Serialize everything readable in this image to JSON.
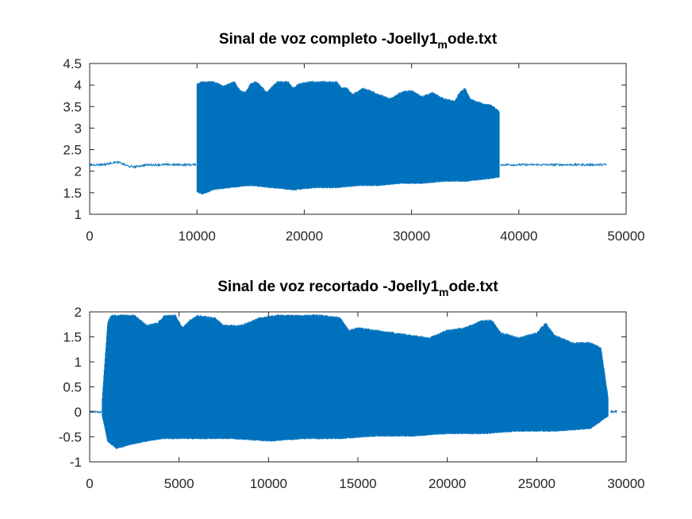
{
  "chart_data": [
    {
      "type": "line",
      "title": "Sinal de voz completo -Joelly1",
      "title_subscript": "m",
      "title_suffix": "ode.txt",
      "xlabel": "",
      "ylabel": "",
      "xlim": [
        0,
        50000
      ],
      "ylim": [
        1,
        4.5
      ],
      "xticks": [
        0,
        10000,
        20000,
        30000,
        40000,
        50000
      ],
      "yticks": [
        1,
        1.5,
        2,
        2.5,
        3,
        3.5,
        4,
        4.5
      ],
      "grid": false,
      "color": "#0072BD",
      "series": [
        {
          "x_range": [
            0,
            48200
          ],
          "baseline": 2.15,
          "silence_start": [
            0,
            9900
          ],
          "silence_end": [
            38300,
            48200
          ],
          "upper_envelope": [
            [
              10000,
              4.05
            ],
            [
              10500,
              4.1
            ],
            [
              11500,
              4.1
            ],
            [
              12500,
              4.0
            ],
            [
              13500,
              4.1
            ],
            [
              14000,
              3.9
            ],
            [
              14500,
              3.85
            ],
            [
              15000,
              4.05
            ],
            [
              15500,
              4.1
            ],
            [
              16000,
              4.0
            ],
            [
              16500,
              3.85
            ],
            [
              17500,
              4.1
            ],
            [
              18500,
              4.1
            ],
            [
              19000,
              3.95
            ],
            [
              19500,
              4.05
            ],
            [
              20500,
              4.1
            ],
            [
              22000,
              4.1
            ],
            [
              23000,
              4.1
            ],
            [
              23500,
              3.95
            ],
            [
              24000,
              3.95
            ],
            [
              24500,
              3.8
            ],
            [
              25500,
              3.95
            ],
            [
              26000,
              3.9
            ],
            [
              27000,
              3.8
            ],
            [
              28000,
              3.7
            ],
            [
              29000,
              3.85
            ],
            [
              30000,
              3.9
            ],
            [
              31000,
              3.75
            ],
            [
              32000,
              3.85
            ],
            [
              33000,
              3.7
            ],
            [
              34000,
              3.65
            ],
            [
              34500,
              3.85
            ],
            [
              35000,
              3.95
            ],
            [
              35500,
              3.7
            ],
            [
              36500,
              3.6
            ],
            [
              37500,
              3.55
            ],
            [
              38200,
              3.4
            ]
          ],
          "lower_envelope": [
            [
              10000,
              1.5
            ],
            [
              10500,
              1.45
            ],
            [
              11500,
              1.55
            ],
            [
              13000,
              1.6
            ],
            [
              15000,
              1.65
            ],
            [
              17000,
              1.6
            ],
            [
              19000,
              1.55
            ],
            [
              21000,
              1.6
            ],
            [
              23000,
              1.6
            ],
            [
              25000,
              1.65
            ],
            [
              27000,
              1.65
            ],
            [
              29000,
              1.7
            ],
            [
              31000,
              1.7
            ],
            [
              33000,
              1.75
            ],
            [
              35000,
              1.75
            ],
            [
              37000,
              1.8
            ],
            [
              38200,
              1.85
            ]
          ]
        }
      ]
    },
    {
      "type": "line",
      "title": "Sinal de voz recortado -Joelly1",
      "title_subscript": "m",
      "title_suffix": "ode.txt",
      "xlabel": "",
      "ylabel": "",
      "xlim": [
        0,
        30000
      ],
      "ylim": [
        -1,
        2
      ],
      "xticks": [
        0,
        5000,
        10000,
        15000,
        20000,
        25000,
        30000
      ],
      "yticks": [
        -1,
        -0.5,
        0,
        0.5,
        1,
        1.5,
        2
      ],
      "grid": false,
      "color": "#0072BD",
      "series": [
        {
          "x_range": [
            0,
            29500
          ],
          "baseline": 0.0,
          "silence_start": [
            0,
            650
          ],
          "silence_end": [
            29100,
            29500
          ],
          "upper_envelope": [
            [
              700,
              0.3
            ],
            [
              1000,
              1.8
            ],
            [
              1200,
              1.95
            ],
            [
              2500,
              1.95
            ],
            [
              3200,
              1.75
            ],
            [
              3800,
              1.8
            ],
            [
              4200,
              1.95
            ],
            [
              4800,
              1.95
            ],
            [
              5200,
              1.7
            ],
            [
              5600,
              1.85
            ],
            [
              6000,
              1.95
            ],
            [
              7000,
              1.9
            ],
            [
              7500,
              1.75
            ],
            [
              8500,
              1.75
            ],
            [
              9500,
              1.9
            ],
            [
              10500,
              1.95
            ],
            [
              13000,
              1.95
            ],
            [
              14000,
              1.9
            ],
            [
              14500,
              1.65
            ],
            [
              15000,
              1.7
            ],
            [
              16000,
              1.65
            ],
            [
              17000,
              1.6
            ],
            [
              18000,
              1.55
            ],
            [
              19000,
              1.5
            ],
            [
              20000,
              1.65
            ],
            [
              21000,
              1.7
            ],
            [
              22000,
              1.85
            ],
            [
              22500,
              1.85
            ],
            [
              23000,
              1.6
            ],
            [
              24000,
              1.5
            ],
            [
              25000,
              1.6
            ],
            [
              25500,
              1.8
            ],
            [
              26000,
              1.55
            ],
            [
              27000,
              1.4
            ],
            [
              28000,
              1.4
            ],
            [
              28600,
              1.3
            ],
            [
              29000,
              0.3
            ]
          ],
          "lower_envelope": [
            [
              700,
              -0.1
            ],
            [
              1000,
              -0.6
            ],
            [
              1500,
              -0.75
            ],
            [
              2500,
              -0.65
            ],
            [
              4000,
              -0.55
            ],
            [
              6000,
              -0.55
            ],
            [
              8000,
              -0.55
            ],
            [
              10000,
              -0.6
            ],
            [
              12000,
              -0.55
            ],
            [
              14000,
              -0.55
            ],
            [
              16000,
              -0.5
            ],
            [
              18000,
              -0.5
            ],
            [
              20000,
              -0.45
            ],
            [
              22000,
              -0.45
            ],
            [
              24000,
              -0.4
            ],
            [
              26000,
              -0.4
            ],
            [
              28000,
              -0.35
            ],
            [
              29000,
              -0.1
            ]
          ]
        }
      ]
    }
  ]
}
